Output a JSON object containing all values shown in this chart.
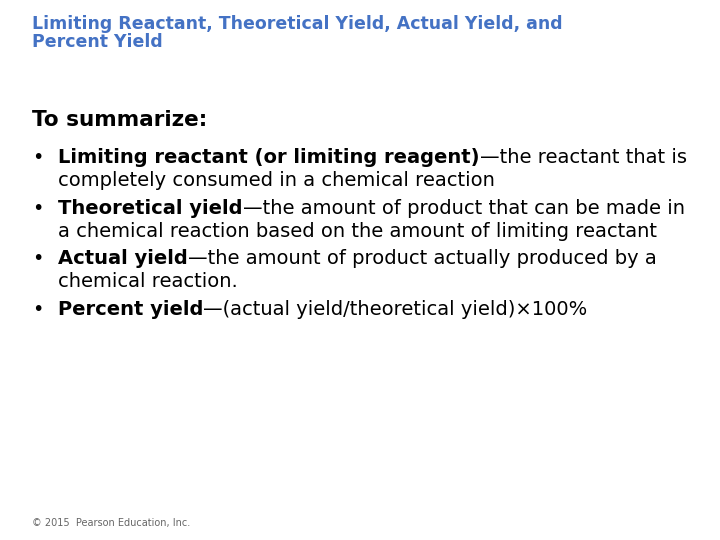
{
  "background_color": "#ffffff",
  "title_line1": "Limiting Reactant, Theoretical Yield, Actual Yield, and",
  "title_line2": "Percent Yield",
  "title_color": "#4472C4",
  "title_fontsize": 12.5,
  "summarize_text": "To summarize:",
  "summarize_fontsize": 15.5,
  "body_fontsize": 14.0,
  "bullet_items": [
    {
      "bold_part": "Limiting reactant (or limiting reagent)",
      "normal_part": "—the reactant that is completely consumed in a chemical reaction"
    },
    {
      "bold_part": "Theoretical yield",
      "normal_part": "—the amount of product that can be made in a chemical reaction based on the amount of limiting reactant"
    },
    {
      "bold_part": "Actual yield",
      "normal_part": "—the amount of product actually produced by a chemical reaction."
    },
    {
      "bold_part": "Percent yield",
      "normal_part": "—(actual yield/theoretical yield)×100%"
    }
  ],
  "footer_text": "© 2015  Pearson Education, Inc.",
  "footer_fontsize": 7.0,
  "text_color": "#000000",
  "bullet_char": "•"
}
